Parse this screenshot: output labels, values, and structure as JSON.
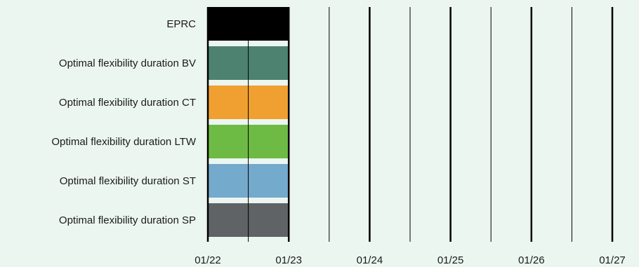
{
  "chart_data": {
    "type": "bar",
    "orientation": "horizontal",
    "title": "",
    "xlabel": "",
    "ylabel": "",
    "x_ticks": [
      "01/22",
      "01/23",
      "01/24",
      "01/25",
      "01/26",
      "01/27"
    ],
    "x_range": [
      "01/22",
      "01/27"
    ],
    "grid": "vertical",
    "legend": "none",
    "bars": [
      {
        "category": "EPRC",
        "start": "01/22",
        "end": "01/23",
        "color": "#000000"
      },
      {
        "category": "Optimal flexibility duration BV",
        "start": "01/22",
        "end": "01/23",
        "color": "#4e8270"
      },
      {
        "category": "Optimal flexibility duration CT",
        "start": "01/22",
        "end": "01/23",
        "color": "#f0a030"
      },
      {
        "category": "Optimal flexibility duration LTW",
        "start": "01/22",
        "end": "01/23",
        "color": "#6dbb45"
      },
      {
        "category": "Optimal flexibility duration ST",
        "start": "01/22",
        "end": "01/23",
        "color": "#74aacc"
      },
      {
        "category": "Optimal flexibility duration SP",
        "start": "01/22",
        "end": "01/23",
        "color": "#606366"
      }
    ]
  }
}
